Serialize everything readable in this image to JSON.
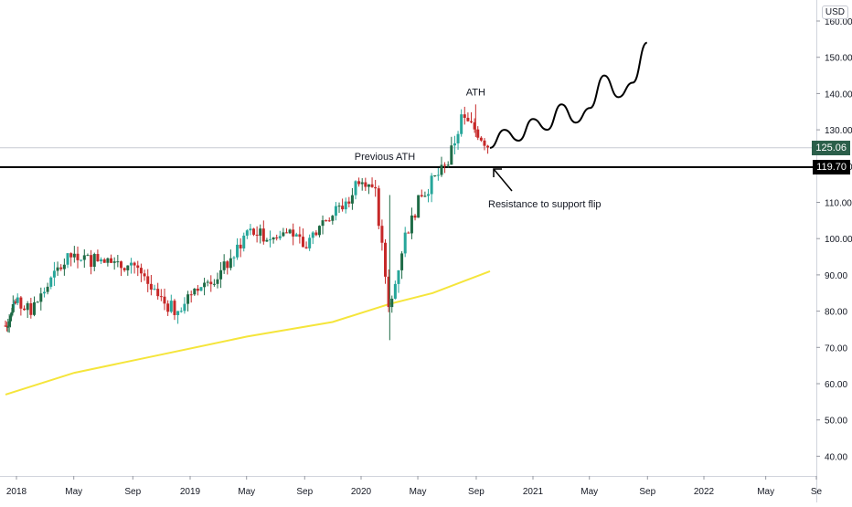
{
  "currency": "USD",
  "price_axis": {
    "ticks": [
      "160.00",
      "150.00",
      "140.00",
      "130.00",
      "120.00",
      "110.00",
      "100.00",
      "90.00",
      "80.00",
      "70.00",
      "60.00",
      "50.00",
      "40.00"
    ],
    "last_price": "125.06",
    "level_price": "119.70"
  },
  "time_axis": {
    "labels": [
      "2018",
      "May",
      "Sep",
      "2019",
      "May",
      "Sep",
      "2020",
      "May",
      "Sep",
      "2021",
      "May",
      "Sep",
      "2022",
      "May",
      "Se"
    ]
  },
  "annotations": {
    "ath": "ATH",
    "previous_ath": "Previous ATH",
    "flip": "Resistance to support flip"
  },
  "colors": {
    "up": "#26a69a",
    "up_dark": "#1e6b46",
    "down": "#c62828",
    "moving_average": "#f5e53b",
    "level_line": "#000000",
    "last_price_line": "#c8ccd4",
    "last_price_badge": "#2b5f4a"
  },
  "chart_data": {
    "type": "candlestick",
    "y_unit": "USD",
    "ylim": [
      33,
      163
    ],
    "log_scale": false,
    "grid": false,
    "horizontal_levels": [
      {
        "value": 119.7
      },
      {
        "value": 125.06
      }
    ],
    "price_path_close": [
      {
        "x": "2017-11",
        "y": 76
      },
      {
        "x": "2017-12",
        "y": 79
      },
      {
        "x": "2018-01",
        "y": 82
      },
      {
        "x": "2018-02",
        "y": 80
      },
      {
        "x": "2018-03",
        "y": 86
      },
      {
        "x": "2018-04",
        "y": 92
      },
      {
        "x": "2018-05",
        "y": 96
      },
      {
        "x": "2018-06",
        "y": 94
      },
      {
        "x": "2018-07",
        "y": 95
      },
      {
        "x": "2018-08",
        "y": 92
      },
      {
        "x": "2018-09",
        "y": 94
      },
      {
        "x": "2018-10",
        "y": 87
      },
      {
        "x": "2018-11",
        "y": 83
      },
      {
        "x": "2018-12",
        "y": 80
      },
      {
        "x": "2019-01",
        "y": 85
      },
      {
        "x": "2019-02",
        "y": 88
      },
      {
        "x": "2019-03",
        "y": 90
      },
      {
        "x": "2019-04",
        "y": 95
      },
      {
        "x": "2019-05",
        "y": 102
      },
      {
        "x": "2019-06",
        "y": 101
      },
      {
        "x": "2019-07",
        "y": 100
      },
      {
        "x": "2019-08",
        "y": 102
      },
      {
        "x": "2019-09",
        "y": 97
      },
      {
        "x": "2019-10",
        "y": 104
      },
      {
        "x": "2019-11",
        "y": 107
      },
      {
        "x": "2019-12",
        "y": 110
      },
      {
        "x": "2020-01",
        "y": 118
      },
      {
        "x": "2020-02",
        "y": 112
      },
      {
        "x": "2020-03",
        "y": 80
      },
      {
        "x": "2020-04",
        "y": 100
      },
      {
        "x": "2020-05",
        "y": 110
      },
      {
        "x": "2020-06",
        "y": 116
      },
      {
        "x": "2020-07",
        "y": 120
      },
      {
        "x": "2020-08",
        "y": 133
      },
      {
        "x": "2020-09",
        "y": 130
      },
      {
        "x": "2020-10",
        "y": 125
      }
    ],
    "ath": {
      "x": "2020-09",
      "y": 137
    },
    "projection": [
      {
        "x": "2020-10",
        "y": 125
      },
      {
        "x": "2020-11",
        "y": 130
      },
      {
        "x": "2020-12",
        "y": 127
      },
      {
        "x": "2021-01",
        "y": 133
      },
      {
        "x": "2021-02",
        "y": 130
      },
      {
        "x": "2021-03",
        "y": 137
      },
      {
        "x": "2021-04",
        "y": 132
      },
      {
        "x": "2021-05",
        "y": 136
      },
      {
        "x": "2021-06",
        "y": 145
      },
      {
        "x": "2021-07",
        "y": 139
      },
      {
        "x": "2021-08",
        "y": 143
      },
      {
        "x": "2021-09",
        "y": 154
      }
    ],
    "moving_average": [
      {
        "x": "2017-11",
        "y": 57
      },
      {
        "x": "2018-05",
        "y": 63
      },
      {
        "x": "2018-11",
        "y": 68
      },
      {
        "x": "2019-05",
        "y": 73
      },
      {
        "x": "2019-11",
        "y": 77
      },
      {
        "x": "2020-03",
        "y": 82
      },
      {
        "x": "2020-06",
        "y": 85
      },
      {
        "x": "2020-10",
        "y": 91
      }
    ]
  }
}
